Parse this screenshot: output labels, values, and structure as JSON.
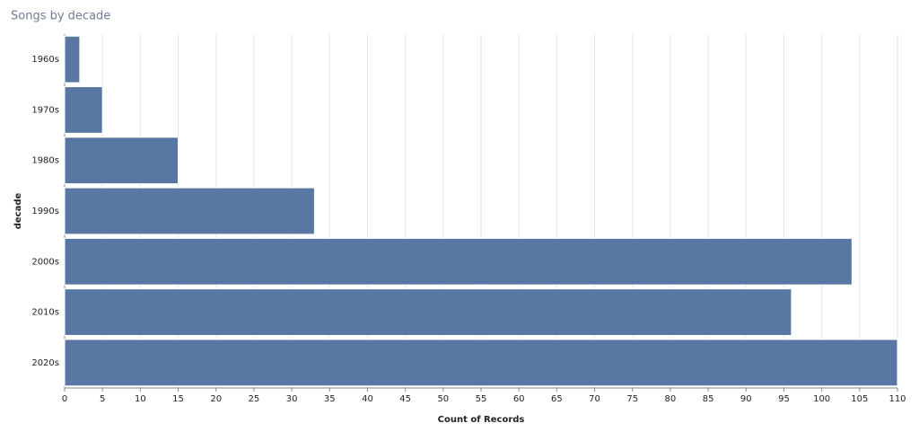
{
  "chart_data": {
    "type": "barh",
    "title": "Songs by decade",
    "y_label": "decade",
    "x_label": "Count of Records",
    "categories": [
      "1960s",
      "1970s",
      "1980s",
      "1990s",
      "2000s",
      "2010s",
      "2020s"
    ],
    "values": [
      2,
      5,
      15,
      33,
      104,
      96,
      110
    ],
    "color": "#5878a3",
    "xlim": [
      0,
      110
    ],
    "xticks": [
      0,
      5,
      10,
      15,
      20,
      25,
      30,
      35,
      40,
      45,
      50,
      55,
      60,
      65,
      70,
      75,
      80,
      85,
      90,
      95,
      100,
      105,
      110
    ],
    "grid": true
  }
}
